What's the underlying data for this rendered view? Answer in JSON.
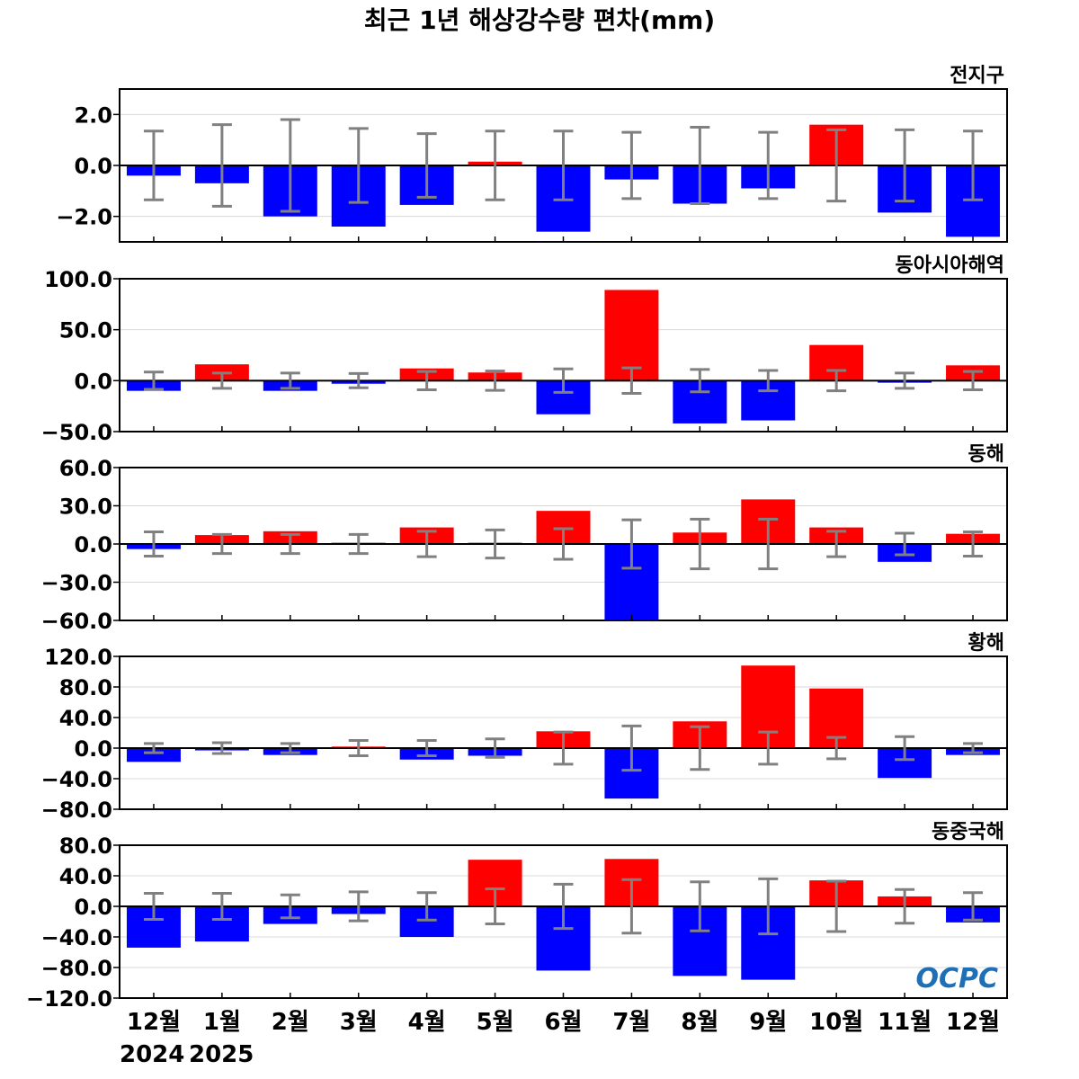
{
  "chart_data": {
    "type": "bar",
    "title": "최근 1년 해상강수량 편차(mm)",
    "categories": [
      "12월",
      "1월",
      "2월",
      "3월",
      "4월",
      "5월",
      "6월",
      "7월",
      "8월",
      "9월",
      "10월",
      "11월",
      "12월"
    ],
    "year_labels": [
      "2024",
      "2025"
    ],
    "colors": {
      "positive": "#ff0000",
      "negative": "#0000ff",
      "errorbar": "#808080",
      "zeroline": "#000000"
    },
    "logo": "OCPC",
    "panels": [
      {
        "name": "전지구",
        "ylim": [
          -3.0,
          3.0
        ],
        "yticks": [
          2.0,
          0.0,
          -2.0
        ],
        "tick_labels": [
          "2.0",
          "0.0",
          "−2.0"
        ],
        "values": [
          -0.4,
          -0.7,
          -2.0,
          -2.4,
          -1.55,
          0.15,
          -2.6,
          -0.55,
          -1.5,
          -0.9,
          1.6,
          -1.85,
          -2.8
        ],
        "errors": [
          1.35,
          1.6,
          1.8,
          1.45,
          1.25,
          1.35,
          1.35,
          1.3,
          1.5,
          1.3,
          1.4,
          1.4,
          1.35
        ]
      },
      {
        "name": "동아시아해역",
        "ylim": [
          -50,
          100
        ],
        "yticks": [
          100,
          50,
          0,
          -50
        ],
        "tick_labels": [
          "100.0",
          "50.0",
          "0.0",
          "−50.0"
        ],
        "values": [
          -10,
          16,
          -10,
          -3,
          12,
          8,
          -33,
          89,
          -42,
          -39,
          35,
          -2,
          15
        ],
        "errors": [
          8.5,
          7.5,
          7.5,
          7,
          9,
          9.5,
          11.5,
          12.5,
          11,
          10,
          10,
          7.5,
          9
        ]
      },
      {
        "name": "동해",
        "ylim": [
          -60,
          60
        ],
        "yticks": [
          60,
          30,
          0,
          -30,
          -60
        ],
        "tick_labels": [
          "60.0",
          "30.0",
          "0.0",
          "−30.0",
          "−60.0"
        ],
        "values": [
          -4,
          7,
          10,
          1,
          13,
          1,
          26,
          -60,
          9,
          35,
          13,
          -14,
          8
        ],
        "errors": [
          9.5,
          7.5,
          7.5,
          7.5,
          10,
          11,
          12,
          19,
          19.5,
          19.5,
          10,
          8.5,
          9.5
        ]
      },
      {
        "name": "황해",
        "ylim": [
          -80,
          120
        ],
        "yticks": [
          120,
          80,
          40,
          0,
          -40,
          -80
        ],
        "tick_labels": [
          "120.0",
          "80.0",
          "40.0",
          "0.0",
          "−40.0",
          "−80.0"
        ],
        "values": [
          -18,
          -3,
          -9,
          2,
          -15,
          -10,
          22,
          -66,
          35,
          108,
          78,
          -39,
          -9
        ],
        "errors": [
          6,
          7,
          6,
          10,
          10,
          12,
          21,
          29,
          28,
          21,
          14,
          15,
          6
        ]
      },
      {
        "name": "동중국해",
        "ylim": [
          -120,
          80
        ],
        "yticks": [
          80,
          40,
          0,
          -40,
          -80,
          -120
        ],
        "tick_labels": [
          "80.0",
          "40.0",
          "0.0",
          "−40.0",
          "−80.0",
          "−120.0"
        ],
        "values": [
          -54,
          -46,
          -23,
          -10,
          -40,
          61,
          -84,
          62,
          -91,
          -96,
          34,
          13,
          -21
        ],
        "errors": [
          17,
          17,
          15,
          19,
          18,
          23,
          29,
          35,
          32,
          36,
          33,
          22,
          18
        ]
      }
    ]
  }
}
